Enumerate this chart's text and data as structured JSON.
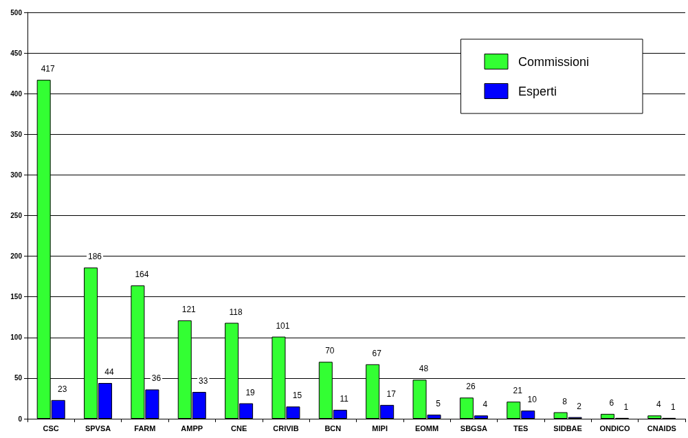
{
  "chart_data": {
    "type": "bar",
    "categories": [
      "CSC",
      "SPVSA",
      "FARM",
      "AMPP",
      "CNE",
      "CRIVIB",
      "BCN",
      "MIPI",
      "EOMM",
      "SBGSA",
      "TES",
      "SIDBAE",
      "ONDICO",
      "CNAIDS"
    ],
    "series": [
      {
        "name": "Commissioni",
        "color": "#33ff33",
        "values": [
          417,
          186,
          164,
          121,
          118,
          101,
          70,
          67,
          48,
          26,
          21,
          8,
          6,
          4
        ]
      },
      {
        "name": "Esperti",
        "color": "#0000ff",
        "values": [
          23,
          44,
          36,
          33,
          19,
          15,
          11,
          17,
          5,
          4,
          10,
          2,
          1,
          1
        ]
      }
    ],
    "ylim": [
      0,
      500
    ],
    "yticks": [
      0,
      50,
      100,
      150,
      200,
      250,
      300,
      350,
      400,
      450,
      500
    ],
    "grid": "y",
    "legend": "top right",
    "data_labels": true
  }
}
